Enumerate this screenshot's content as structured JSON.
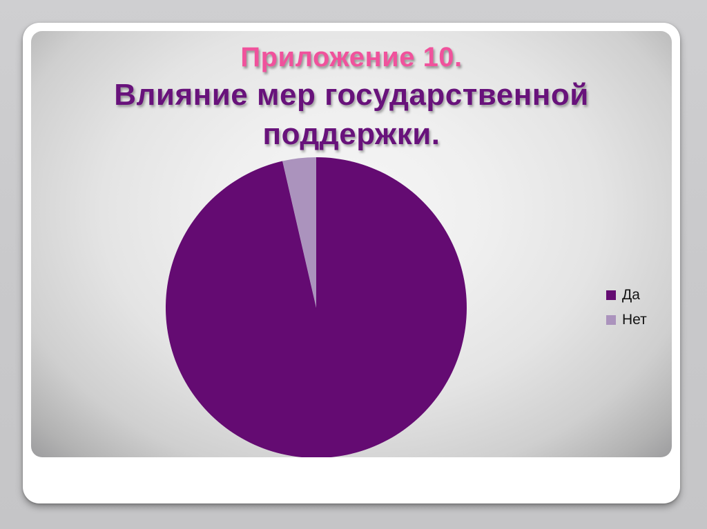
{
  "slide": {
    "title": {
      "line1": "Приложение 10.",
      "line2": "Влияние мер государственной",
      "line3": "поддержки."
    },
    "colors": {
      "title_line1": "#f0529c",
      "title_rest": "#68127b",
      "outer_background": "#c9c9cb",
      "frame": "#ffffff"
    }
  },
  "chart_data": {
    "type": "pie",
    "title": "",
    "categories": [
      "Да",
      "Нет"
    ],
    "values": [
      96.4,
      3.6
    ],
    "unit": "%",
    "colors": [
      "#640b72",
      "#ab93bd"
    ],
    "start_angle_deg": 0,
    "direction": "clockwise",
    "legend_position": "right",
    "data_labels": false
  }
}
